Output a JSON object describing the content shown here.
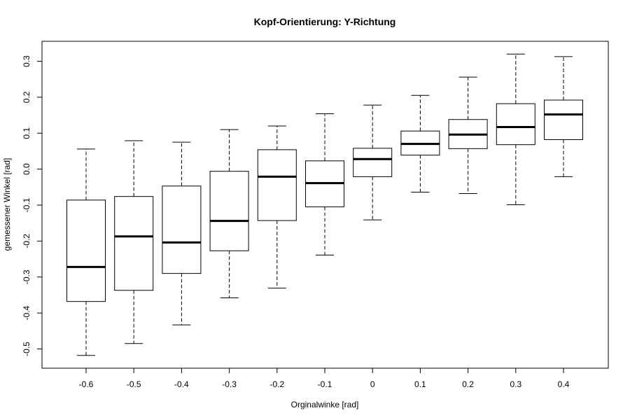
{
  "chart_data": {
    "type": "boxplot",
    "title": "Kopf-Orientierung: Y-Richtung",
    "xlabel": "Orginalwinke [rad]",
    "ylabel": "gemessener Winkel [rad]",
    "ylim": [
      -0.55,
      0.35
    ],
    "yticks": [
      "-0.5",
      "-0.4",
      "-0.3",
      "-0.2",
      "-0.1",
      "0.0",
      "0.1",
      "0.2",
      "0.3"
    ],
    "categories": [
      "-0.6",
      "-0.5",
      "-0.4",
      "-0.3",
      "-0.2",
      "-0.1",
      "0",
      "0.1",
      "0.2",
      "0.3",
      "0.4"
    ],
    "boxes": [
      {
        "category": "-0.6",
        "whisker_low": -0.518,
        "q1": -0.368,
        "median": -0.272,
        "q3": -0.086,
        "whisker_high": 0.056
      },
      {
        "category": "-0.5",
        "whisker_low": -0.485,
        "q1": -0.337,
        "median": -0.187,
        "q3": -0.076,
        "whisker_high": 0.079
      },
      {
        "category": "-0.4",
        "whisker_low": -0.433,
        "q1": -0.29,
        "median": -0.204,
        "q3": -0.047,
        "whisker_high": 0.075
      },
      {
        "category": "-0.3",
        "whisker_low": -0.358,
        "q1": -0.227,
        "median": -0.144,
        "q3": -0.006,
        "whisker_high": 0.11
      },
      {
        "category": "-0.2",
        "whisker_low": -0.331,
        "q1": -0.143,
        "median": -0.021,
        "q3": 0.054,
        "whisker_high": 0.12
      },
      {
        "category": "-0.1",
        "whisker_low": -0.239,
        "q1": -0.105,
        "median": -0.039,
        "q3": 0.023,
        "whisker_high": 0.154
      },
      {
        "category": "0",
        "whisker_low": -0.141,
        "q1": -0.021,
        "median": 0.028,
        "q3": 0.058,
        "whisker_high": 0.178
      },
      {
        "category": "0.1",
        "whisker_low": -0.064,
        "q1": 0.039,
        "median": 0.07,
        "q3": 0.106,
        "whisker_high": 0.205
      },
      {
        "category": "0.2",
        "whisker_low": -0.068,
        "q1": 0.057,
        "median": 0.096,
        "q3": 0.138,
        "whisker_high": 0.256
      },
      {
        "category": "0.3",
        "whisker_low": -0.099,
        "q1": 0.068,
        "median": 0.117,
        "q3": 0.182,
        "whisker_high": 0.32
      },
      {
        "category": "0.4",
        "whisker_low": -0.021,
        "q1": 0.082,
        "median": 0.152,
        "q3": 0.192,
        "whisker_high": 0.313
      }
    ],
    "grid": false,
    "legend": "none"
  }
}
